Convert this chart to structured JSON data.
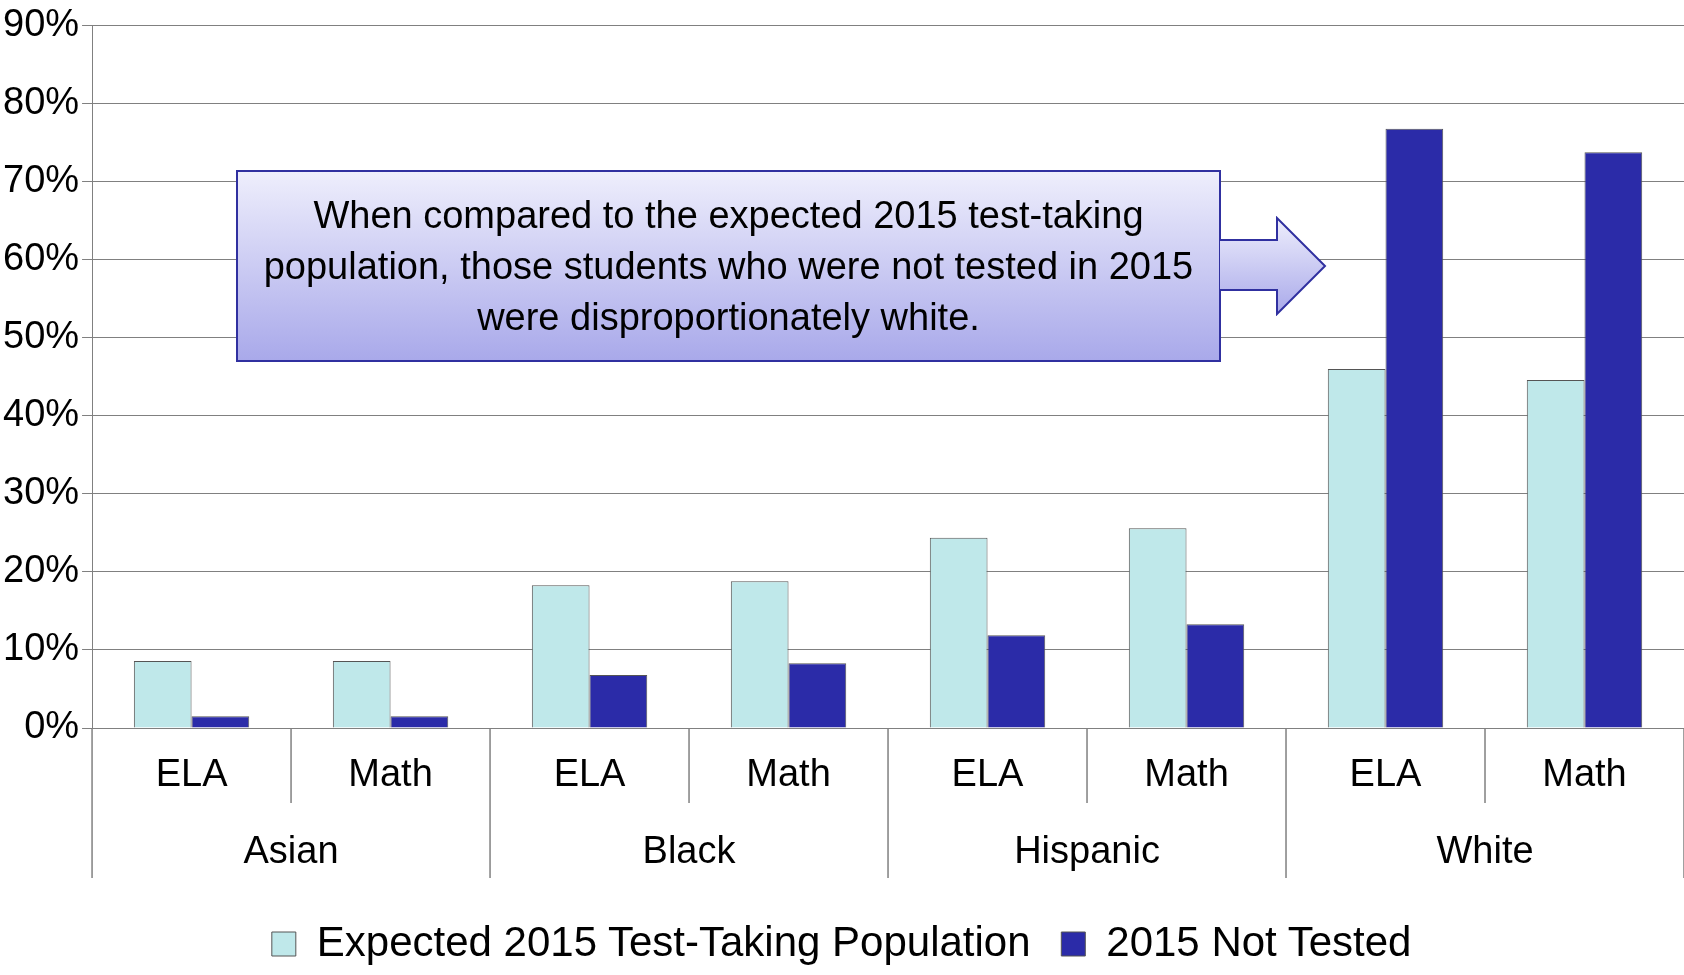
{
  "chart_data": {
    "type": "bar",
    "categories": [
      "ELA",
      "Math",
      "ELA",
      "Math",
      "ELA",
      "Math",
      "ELA",
      "Math"
    ],
    "series": [
      {
        "name": "Expected 2015 Test-Taking Population",
        "color": "#bfe8ea",
        "values": [
          8.6,
          8.6,
          18.3,
          18.8,
          24.4,
          25.6,
          46,
          44.6
        ]
      },
      {
        "name": "2015 Not Tested",
        "color": "#2b2ba8",
        "values": [
          1.5,
          1.5,
          6.8,
          8.3,
          11.9,
          13.3,
          76.8,
          73.8
        ]
      }
    ],
    "ylim": [
      0,
      90
    ],
    "yticks": [
      {
        "value": 0,
        "label": "0%"
      },
      {
        "value": 10,
        "label": "10%"
      },
      {
        "value": 20,
        "label": "20%"
      },
      {
        "value": 30,
        "label": "30%"
      },
      {
        "value": 40,
        "label": "40%"
      },
      {
        "value": 50,
        "label": "50%"
      },
      {
        "value": 60,
        "label": "60%"
      },
      {
        "value": 70,
        "label": "70%"
      },
      {
        "value": 80,
        "label": "80%"
      },
      {
        "value": 90,
        "label": "90%"
      }
    ],
    "grid": "y",
    "legend": "bottom",
    "annotations": [
      "When compared to the expected 2015 test-taking population, those students who were not tested in 2015 were disproportionately white.",
      "Asian",
      "Black",
      "Hispanic",
      "White"
    ]
  }
}
